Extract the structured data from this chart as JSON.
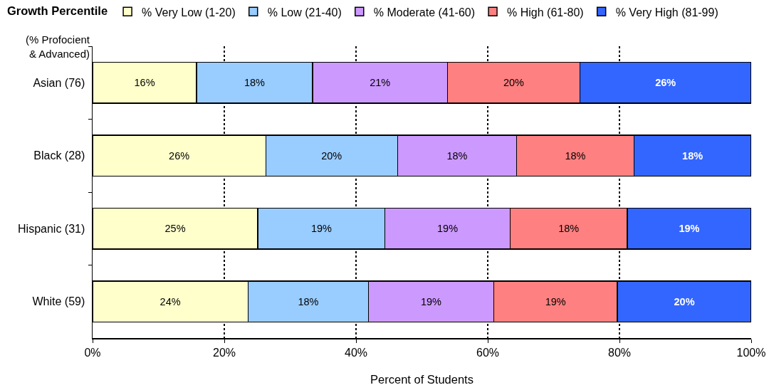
{
  "chart_data": {
    "type": "bar",
    "orientation": "horizontal",
    "stacked": true,
    "legend_title": "Growth Percentile",
    "ylabel": "(% Profocient\n& Advanced)",
    "xlabel": "Percent of Students",
    "categories": [
      "Asian (76)",
      "Black (28)",
      "Hispanic (31)",
      "White (59)"
    ],
    "series": [
      {
        "name": "% Very Low (1-20)",
        "color": "#ffffcc",
        "values": [
          15.8,
          26.3,
          25.1,
          23.6
        ],
        "value_labels": [
          "16%",
          "26%",
          "25%",
          "24%"
        ]
      },
      {
        "name": "% Low (21-40)",
        "color": "#99ccff",
        "values": [
          17.6,
          20.0,
          19.3,
          18.3
        ],
        "value_labels": [
          "18%",
          "20%",
          "19%",
          "18%"
        ]
      },
      {
        "name": "% Moderate (41-60)",
        "color": "#cc99ff",
        "values": [
          20.5,
          18.1,
          19.0,
          19.0
        ],
        "value_labels": [
          "21%",
          "18%",
          "19%",
          "19%"
        ]
      },
      {
        "name": "% High (61-80)",
        "color": "#ff8080",
        "values": [
          20.1,
          17.8,
          17.8,
          18.8
        ],
        "value_labels": [
          "20%",
          "18%",
          "18%",
          "19%"
        ]
      },
      {
        "name": "% Very High (81-99)",
        "color": "#3366ff",
        "values": [
          26.0,
          17.8,
          18.8,
          20.3
        ],
        "value_labels": [
          "26%",
          "18%",
          "19%",
          "20%"
        ]
      }
    ],
    "xlim": [
      0,
      100
    ],
    "xticks": [
      {
        "value": 0,
        "label": "0%"
      },
      {
        "value": 20,
        "label": "20%"
      },
      {
        "value": 40,
        "label": "40%"
      },
      {
        "value": 60,
        "label": "60%"
      },
      {
        "value": 80,
        "label": "80%"
      },
      {
        "value": 100,
        "label": "100%"
      }
    ],
    "grid": "x",
    "legend": "top"
  }
}
